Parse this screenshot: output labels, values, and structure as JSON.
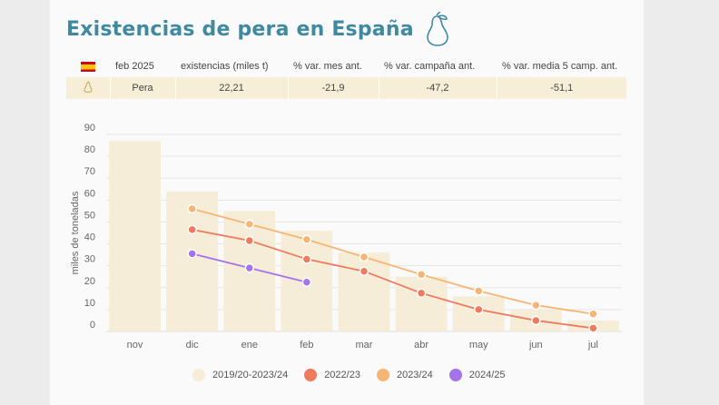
{
  "header": {
    "title": "Existencias de pera en España"
  },
  "summary": {
    "columns": [
      "feb 2025",
      "existencias (miles t)",
      "% var. mes ant.",
      "% var. campaña ant.",
      "% var. media 5 camp. ant."
    ],
    "row": {
      "product": "Pera",
      "stock": "22,21",
      "var_month": "-21,9",
      "var_campaign": "-47,2",
      "var_avg5": "-51,1"
    }
  },
  "chart_data": {
    "type": "bar",
    "ylabel": "miles de toneladas",
    "ylim": [
      0,
      90
    ],
    "yticks": [
      0,
      10,
      20,
      30,
      40,
      50,
      60,
      70,
      80,
      90
    ],
    "categories": [
      "nov",
      "dic",
      "ene",
      "feb",
      "mar",
      "abr",
      "may",
      "jun",
      "jul"
    ],
    "series": [
      {
        "name": "2019/20-2023/24",
        "kind": "bar",
        "color": "#f5edd7",
        "values": [
          87,
          64,
          55,
          46,
          36,
          25,
          16,
          10,
          5
        ]
      },
      {
        "name": "2022/23",
        "kind": "line",
        "color": "#f07a5e",
        "values": [
          null,
          46.5,
          41.5,
          33,
          27.5,
          17.5,
          10,
          5,
          1.5
        ]
      },
      {
        "name": "2023/24",
        "kind": "line",
        "color": "#f7b574",
        "values": [
          null,
          56,
          49,
          42,
          34,
          26,
          18.5,
          12,
          8
        ]
      },
      {
        "name": "2024/25",
        "kind": "line",
        "color": "#a574ea",
        "values": [
          null,
          35.5,
          29,
          22.5,
          null,
          null,
          null,
          null,
          null
        ]
      }
    ]
  }
}
